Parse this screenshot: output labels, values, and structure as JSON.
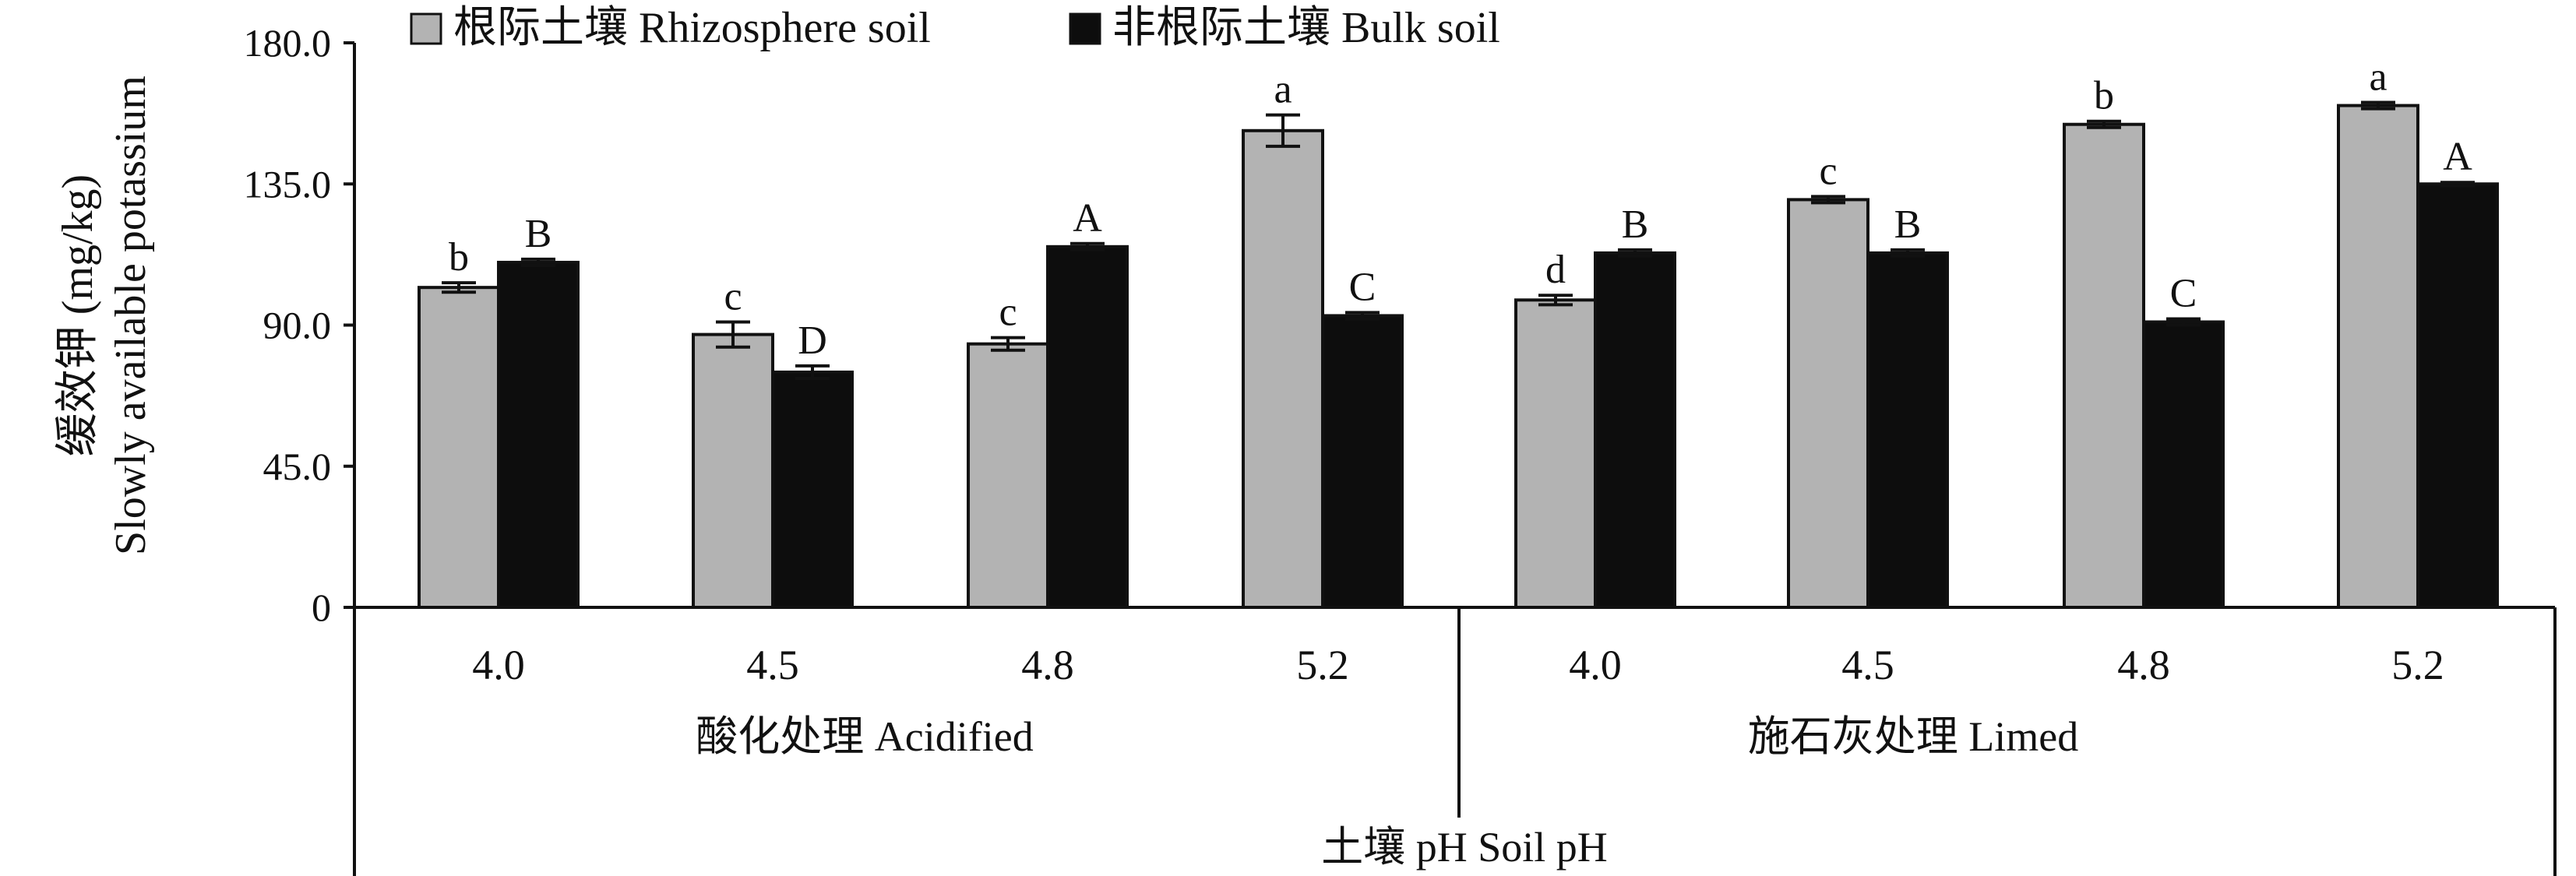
{
  "chart_data": {
    "type": "bar",
    "ylabel_line1": "缓效钾 (mg/kg)",
    "ylabel_line2": "Slowly available potassium",
    "xlabel": "土壤 pH Soil pH",
    "ylim": [
      0,
      180
    ],
    "yticks": [
      "0",
      "45.0",
      "90.0",
      "135.0",
      "180.0"
    ],
    "yticks_values": [
      0,
      45,
      90,
      135,
      180
    ],
    "groups": [
      {
        "label": "酸化处理 Acidified",
        "categories": [
          "4.0",
          "4.5",
          "4.8",
          "5.2"
        ]
      },
      {
        "label": "施石灰处理 Limed",
        "categories": [
          "4.0",
          "4.5",
          "4.8",
          "5.2"
        ]
      }
    ],
    "series": [
      {
        "name": "根际土壤 Rhizosphere soil",
        "color": "#b3b3b3",
        "values": [
          102,
          87,
          84,
          152,
          98,
          130,
          154,
          160
        ],
        "errors": [
          1.5,
          4,
          2,
          5,
          1.5,
          1,
          1,
          1
        ],
        "labels": [
          "b",
          "c",
          "c",
          "a",
          "d",
          "c",
          "b",
          "a"
        ]
      },
      {
        "name": "非根际土壤 Bulk soil",
        "color": "#0d0d0d",
        "values": [
          110,
          75,
          115,
          93,
          113,
          113,
          91,
          135
        ],
        "errors": [
          1,
          2,
          1,
          1,
          1,
          1,
          1,
          0.5
        ],
        "labels": [
          "B",
          "D",
          "A",
          "C",
          "B",
          "B",
          "C",
          "A"
        ]
      }
    ],
    "legend_position": "top",
    "grid": false
  }
}
